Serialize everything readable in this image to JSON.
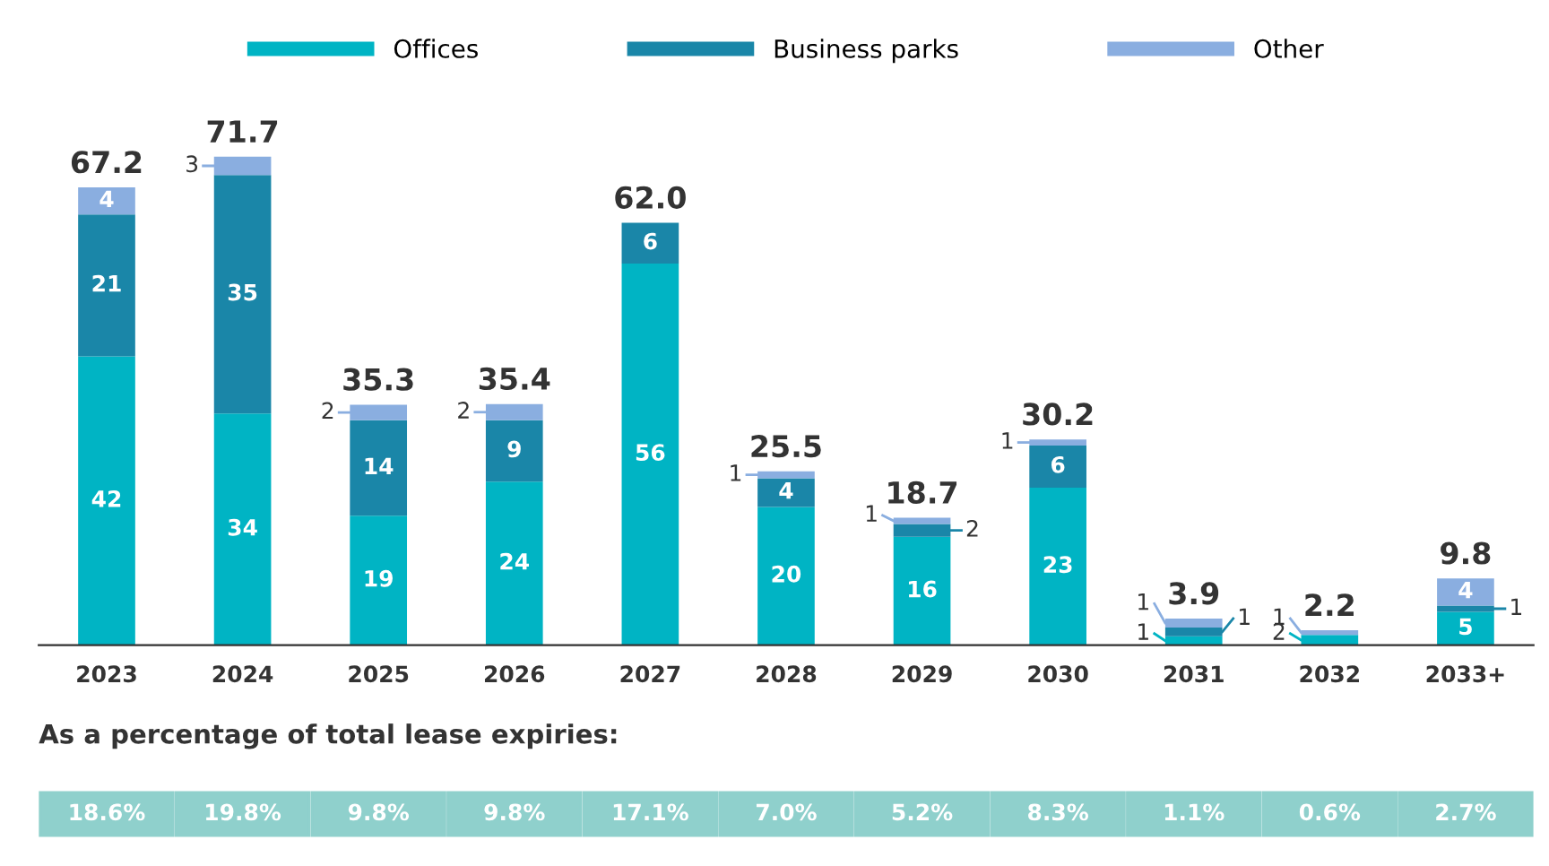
{
  "chart_data": {
    "type": "bar",
    "stacked": true,
    "legend": "top",
    "grid": false,
    "categories": [
      "2023",
      "2024",
      "2025",
      "2026",
      "2027",
      "2028",
      "2029",
      "2030",
      "2031",
      "2032",
      "2033+"
    ],
    "series": [
      {
        "name": "Offices",
        "color": "#00b4c4",
        "values": [
          42.4,
          34.0,
          19.0,
          24.0,
          56.0,
          20.3,
          15.9,
          23.1,
          1.3,
          1.5,
          4.9
        ],
        "value_labels": [
          "42",
          "34",
          "19",
          "24",
          "56",
          "20",
          "16",
          "23",
          "1",
          "2",
          "5"
        ]
      },
      {
        "name": "Business parks",
        "color": "#1a86a8",
        "values": [
          20.8,
          35.0,
          14.0,
          9.0,
          6.0,
          4.2,
          1.9,
          6.2,
          1.3,
          null,
          0.9
        ],
        "value_labels": [
          "21",
          "35",
          "14",
          "9",
          "6",
          "4",
          "2",
          "6",
          "1",
          null,
          "1"
        ]
      },
      {
        "name": "Other",
        "color": "#8aaee0",
        "values": [
          4.0,
          2.7,
          2.3,
          2.4,
          null,
          1.0,
          0.9,
          0.9,
          1.3,
          0.7,
          4.0
        ],
        "value_labels": [
          "4",
          "3",
          "2",
          "2",
          null,
          "1",
          "1",
          "1",
          "1",
          "1",
          "4"
        ]
      }
    ],
    "totals": [
      "67.2",
      "71.7",
      "35.3",
      "35.4",
      "62.0",
      "25.5",
      "18.7",
      "30.2",
      "3.9",
      "2.2",
      "9.8"
    ],
    "annotations": [
      "As a percentage of total lease expiries:",
      "18.6%",
      "19.8%",
      "9.8%",
      "9.8%",
      "17.1%",
      "7.0%",
      "5.2%",
      "8.3%",
      "1.1%",
      "0.6%",
      "2.7%"
    ]
  }
}
